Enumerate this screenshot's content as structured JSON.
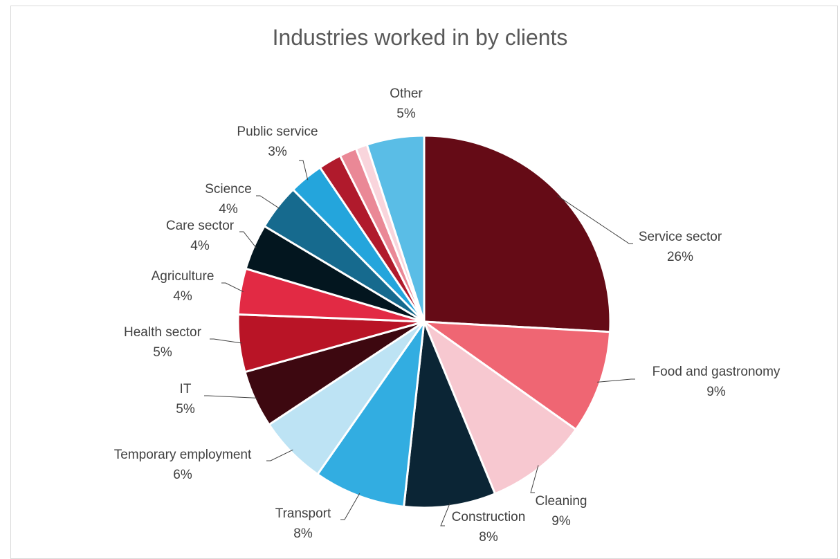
{
  "chart_data": {
    "type": "pie",
    "title": "Industries worked in by clients",
    "slices": [
      {
        "label": "Service sector",
        "value": 26,
        "display": "26%",
        "color": "#650b16"
      },
      {
        "label": "Food and gastronomy",
        "value": 9,
        "display": "9%",
        "color": "#ef6673"
      },
      {
        "label": "Cleaning",
        "value": 9,
        "display": "9%",
        "color": "#f7c8d0"
      },
      {
        "label": "Construction",
        "value": 8,
        "display": "8%",
        "color": "#0b2535"
      },
      {
        "label": "Transport",
        "value": 8,
        "display": "8%",
        "color": "#32ade1"
      },
      {
        "label": "Temporary employment",
        "value": 6,
        "display": "6%",
        "color": "#bde3f4"
      },
      {
        "label": "IT",
        "value": 5,
        "display": "5%",
        "color": "#3d0810"
      },
      {
        "label": "Health sector",
        "value": 5,
        "display": "5%",
        "color": "#b91426"
      },
      {
        "label": "Agriculture",
        "value": 4,
        "display": "4%",
        "color": "#e22a44"
      },
      {
        "label": "Care sector",
        "value": 4,
        "display": "4%",
        "color": "#03161f"
      },
      {
        "label": "Science",
        "value": 4,
        "display": "4%",
        "color": "#166a8e"
      },
      {
        "label": "Public service",
        "value": 3,
        "display": "3%",
        "color": "#24a5dc"
      },
      {
        "label": "",
        "value": 2,
        "display": "",
        "color": "#b01a2c"
      },
      {
        "label": "",
        "value": 1.5,
        "display": "",
        "color": "#ea8896"
      },
      {
        "label": "",
        "value": 1,
        "display": "",
        "color": "#f9d5dc"
      },
      {
        "label": "Other",
        "value": 5,
        "display": "5%",
        "color": "#5abde6"
      }
    ]
  }
}
